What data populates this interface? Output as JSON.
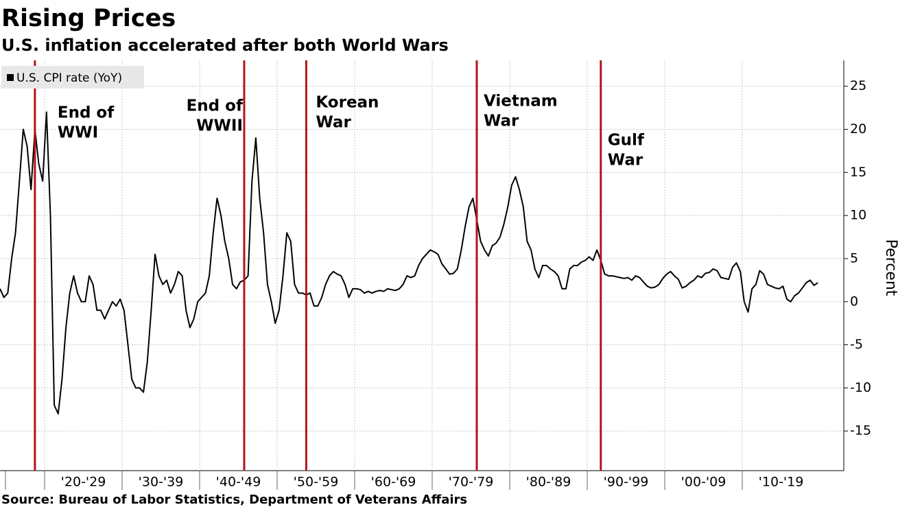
{
  "chart_data": {
    "type": "line",
    "title": "Rising Prices",
    "subtitle": "U.S. inflation accelerated after both World Wars",
    "source": "Source: Bureau of Labor Statistics, Department of Veterans Affairs",
    "y_label": "Percent",
    "categories": [
      null,
      "'20-'29",
      "'30-'39",
      "'40-'49",
      "'50-'59",
      "'60-'69",
      "'70-'79",
      "'80-'89",
      "'90-'99",
      "'00-'09",
      "'10-'19"
    ],
    "series": [
      {
        "name": "U.S. CPI rate (YoY)",
        "color": "#000000",
        "values": [
          [
            null,
            null,
            null,
            null,
            null,
            null,
            null,
            null,
            1.5,
            0.5,
            1,
            5,
            8,
            14,
            20,
            18,
            13,
            20,
            16,
            14
          ],
          [
            22,
            10,
            -12,
            -13,
            -9,
            -3,
            1,
            3,
            1,
            0,
            0,
            3,
            2,
            -1,
            -1,
            -2,
            -1,
            0,
            -0.5,
            0.3
          ],
          [
            -1,
            -5,
            -9,
            -10,
            -10,
            -10.5,
            -7,
            -1,
            5.5,
            3,
            2,
            2.5,
            1,
            2,
            3.5,
            3,
            -1,
            -3,
            -2,
            0
          ],
          [
            0.5,
            1,
            3,
            8,
            12,
            10,
            7,
            5,
            2,
            1.5,
            2.3,
            2.5,
            3,
            14,
            19,
            12,
            8,
            2,
            0,
            -2.5
          ],
          [
            -1,
            3,
            8,
            7,
            2,
            1,
            1,
            0.8,
            1,
            -0.5,
            -0.5,
            0.5,
            2,
            3,
            3.5,
            3.2,
            3,
            2,
            0.5,
            1.5
          ],
          [
            1.5,
            1.4,
            1,
            1.2,
            1,
            1.2,
            1.3,
            1.2,
            1.5,
            1.4,
            1.3,
            1.5,
            2,
            3,
            2.8,
            3,
            4.2,
            5,
            5.5,
            6
          ],
          [
            5.8,
            5.5,
            4.4,
            3.8,
            3.2,
            3.3,
            3.8,
            6,
            8.7,
            11,
            12,
            9.5,
            7,
            6,
            5.3,
            6.5,
            6.8,
            7.5,
            9,
            11
          ],
          [
            13.5,
            14.5,
            13,
            11,
            7,
            6,
            3.8,
            2.8,
            4.2,
            4.2,
            3.8,
            3.5,
            3,
            1.5,
            1.5,
            3.8,
            4.2,
            4.2,
            4.6,
            4.8
          ],
          [
            5.2,
            4.8,
            6,
            4.8,
            3.2,
            3,
            3,
            2.9,
            2.8,
            2.7,
            2.8,
            2.5,
            3,
            2.8,
            2.3,
            1.8,
            1.6,
            1.7,
            2,
            2.7
          ],
          [
            3.2,
            3.5,
            3,
            2.6,
            1.6,
            1.8,
            2.2,
            2.5,
            3,
            2.8,
            3.3,
            3.4,
            3.8,
            3.6,
            2.8,
            2.7,
            2.6,
            4,
            4.5,
            3.5
          ],
          [
            0,
            -1.2,
            1.5,
            2,
            3.6,
            3.2,
            2,
            1.8,
            1.6,
            1.5,
            1.8,
            0.3,
            0,
            0.7,
            1,
            1.6,
            2.2,
            2.5,
            1.9,
            2.2
          ]
        ]
      }
    ],
    "ylim": [
      -19.6,
      28
    ],
    "yticks": [
      -15,
      -10,
      -5,
      0,
      5,
      10,
      15,
      20,
      25
    ],
    "grid": true,
    "legend": "top-left",
    "annotations": [
      {
        "lines": [
          "End of",
          "WWI"
        ],
        "band": 0,
        "sample": 17,
        "color": "#b5121b"
      },
      {
        "lines": [
          "End of",
          "WWII"
        ],
        "band": 3,
        "sample": 11,
        "color": "#b5121b",
        "anchor": "end"
      },
      {
        "lines": [
          "Korean",
          "War"
        ],
        "band": 4,
        "sample": 7,
        "color": "#b5121b"
      },
      {
        "lines": [
          "Vietnam",
          "War"
        ],
        "band": 6,
        "sample": 11,
        "color": "#b5121b"
      },
      {
        "lines": [
          "Gulf",
          "War"
        ],
        "band": 8,
        "sample": 3,
        "color": "#b5121b"
      }
    ]
  }
}
